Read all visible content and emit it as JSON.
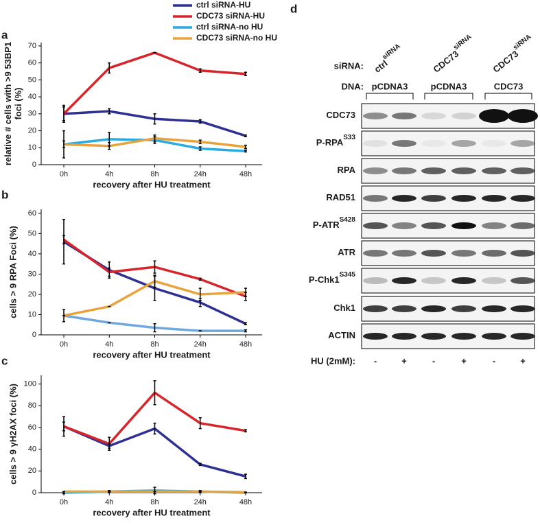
{
  "chart_data": [
    {
      "type": "line",
      "label": "a",
      "ylabel": [
        "relative # cells with >9 53BP1",
        "foci (%)"
      ],
      "xlabel": "recovery after HU treatment",
      "categories": [
        "0h",
        "4h",
        "8h",
        "24h",
        "48h"
      ],
      "ylim": [
        0,
        72
      ],
      "yticks": [
        0,
        10,
        20,
        30,
        40,
        50,
        60,
        70
      ],
      "series": [
        {
          "name": "ctrl siRNA-HU",
          "color": "#2e3192",
          "values": [
            30,
            31.5,
            27,
            25.5,
            17
          ],
          "errors": [
            4,
            1.5,
            3,
            1,
            0.5
          ]
        },
        {
          "name": "CDC73 siRNA-HU",
          "color": "#d7262b",
          "values": [
            30,
            57,
            66,
            55.5,
            53.5
          ],
          "errors": [
            5,
            3,
            0,
            1,
            1
          ]
        },
        {
          "name": "ctrl siRNA-no HU",
          "color": "#29abe2",
          "values": [
            12,
            15,
            14.5,
            9.5,
            8
          ],
          "errors": [
            8,
            4,
            2,
            1,
            0.5
          ]
        },
        {
          "name": "CDC73 siRNA-no HU",
          "color": "#e8a33d",
          "values": [
            12,
            11,
            15.5,
            13.5,
            10.5
          ],
          "errors": [
            2,
            2,
            2,
            1,
            1
          ]
        }
      ]
    },
    {
      "type": "line",
      "label": "b",
      "ylabel": [
        "cells > 9 RPA Foci (%)"
      ],
      "xlabel": "recovery after HU treatment",
      "categories": [
        "0h",
        "4h",
        "8h",
        "24h",
        "48h"
      ],
      "ylim": [
        0,
        62
      ],
      "yticks": [
        0,
        10,
        20,
        30,
        40,
        50,
        60
      ],
      "series": [
        {
          "color": "#2e3192",
          "values": [
            46,
            32,
            23,
            16,
            5.5
          ],
          "errors": [
            11,
            4,
            6,
            2,
            0.5
          ]
        },
        {
          "color": "#d7262b",
          "values": [
            47,
            31,
            33.5,
            27.5,
            19
          ],
          "errors": [
            2,
            2,
            3,
            0.5,
            2
          ]
        },
        {
          "color": "#6fa8dc",
          "values": [
            9.5,
            6,
            3.5,
            2,
            2
          ],
          "errors": [
            3,
            0,
            2,
            0,
            0.5
          ]
        },
        {
          "color": "#e8a33d",
          "values": [
            9.5,
            14,
            26.5,
            20,
            21
          ],
          "errors": [
            0,
            0,
            3,
            3,
            2
          ]
        }
      ]
    },
    {
      "type": "line",
      "label": "c",
      "ylabel": [
        "cells > 9 γH2AX foci (%)"
      ],
      "xlabel": "recovery after HU treatment",
      "categories": [
        "0h",
        "4h",
        "8h",
        "24h",
        "48h"
      ],
      "ylim": [
        0,
        108
      ],
      "yticks": [
        0,
        20,
        40,
        60,
        80,
        100
      ],
      "series": [
        {
          "color": "#29abe2",
          "values": [
            0,
            1,
            2,
            1,
            0
          ],
          "errors": [
            1,
            1,
            3,
            1,
            0
          ]
        },
        {
          "color": "#e8a33d",
          "values": [
            1,
            1,
            1,
            1,
            0.5
          ],
          "errors": [
            0,
            0,
            0,
            0,
            0
          ]
        },
        {
          "color": "#2e3192",
          "values": [
            61,
            43,
            59,
            26,
            15
          ],
          "errors": [
            4,
            2,
            5,
            1,
            2
          ]
        },
        {
          "color": "#d7262b",
          "values": [
            61,
            45,
            92,
            64,
            57
          ],
          "errors": [
            9,
            6,
            11,
            5,
            1
          ]
        }
      ]
    }
  ],
  "blot": {
    "label": "d",
    "sirna_label": "siRNA:",
    "sirna_groups": [
      {
        "text": "ctrl",
        "sup": "siRNA"
      },
      {
        "text": "CDC73",
        "sup": "siRNA"
      },
      {
        "text": "CDC73",
        "sup": "siRNA"
      }
    ],
    "dna_label": "DNA:",
    "dna_groups": [
      "pCDNA3",
      "pCDNA3",
      "CDC73"
    ],
    "rows": [
      {
        "text": "CDC73"
      },
      {
        "text": "P-RPA",
        "sup": "S33"
      },
      {
        "text": "RPA"
      },
      {
        "text": "RAD51"
      },
      {
        "text": "P-ATR",
        "sup": "S428"
      },
      {
        "text": "ATR"
      },
      {
        "text": "P-Chk1",
        "sup": "S345"
      },
      {
        "text": "Chk1"
      },
      {
        "text": "ACTIN"
      }
    ],
    "hu_label": "HU (2mM):",
    "hu": [
      "-",
      "+",
      "-",
      "+",
      "-",
      "+"
    ]
  }
}
